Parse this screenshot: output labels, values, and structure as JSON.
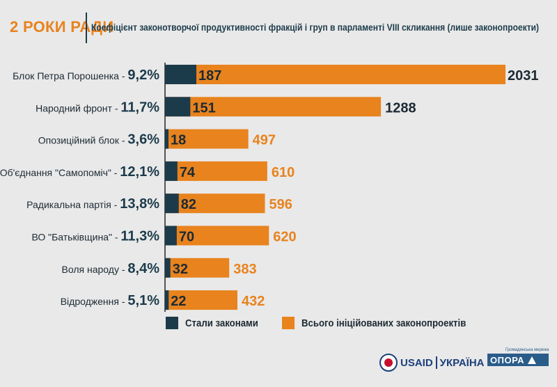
{
  "header": {
    "left_title": "2 РОКИ РАДИ",
    "title": "Коефіцієнт законотворчої продуктивності фракцій і груп в парламенті VIII скликання (лише законопроекти)"
  },
  "colors": {
    "laws": "#1c3b4a",
    "total": "#e8831e",
    "label_text": "#1c2a33",
    "background": "#e9e9e9"
  },
  "chart_data": {
    "type": "bar",
    "orientation": "horizontal",
    "categories": [
      "Блок Петра Порошенка",
      "Народний фронт",
      "Опозиційний блок",
      "Об'єднання \"Самопоміч\"",
      "Радикальна партія",
      "ВО \"Батьківщина\"",
      "Воля народу",
      "Відродження"
    ],
    "percentages": [
      "9,2%",
      "11,7%",
      "3,6%",
      "12,1%",
      "13,8%",
      "11,3%",
      "8,4%",
      "5,1%"
    ],
    "series": [
      {
        "name": "Стали законами",
        "values": [
          187,
          151,
          18,
          74,
          82,
          70,
          32,
          22
        ]
      },
      {
        "name": "Всього ініційованих законопроектів",
        "values": [
          2031,
          1288,
          497,
          610,
          596,
          620,
          383,
          432
        ]
      }
    ],
    "xlim": [
      0,
      2031
    ],
    "title": "Коефіцієнт законотворчої продуктивності фракцій і груп в парламенті VIII скликання (лише законопроекти)",
    "legend_position": "bottom",
    "grid": false
  },
  "legend": {
    "laws_label": "Стали законами",
    "total_label": "Всього ініційованих законопроектів"
  },
  "footer": {
    "usaid_word": "USAID",
    "usaid_country": "УКРАЇНА",
    "opora_small": "Громадянська мережа",
    "opora_word": "ОПОРА"
  }
}
